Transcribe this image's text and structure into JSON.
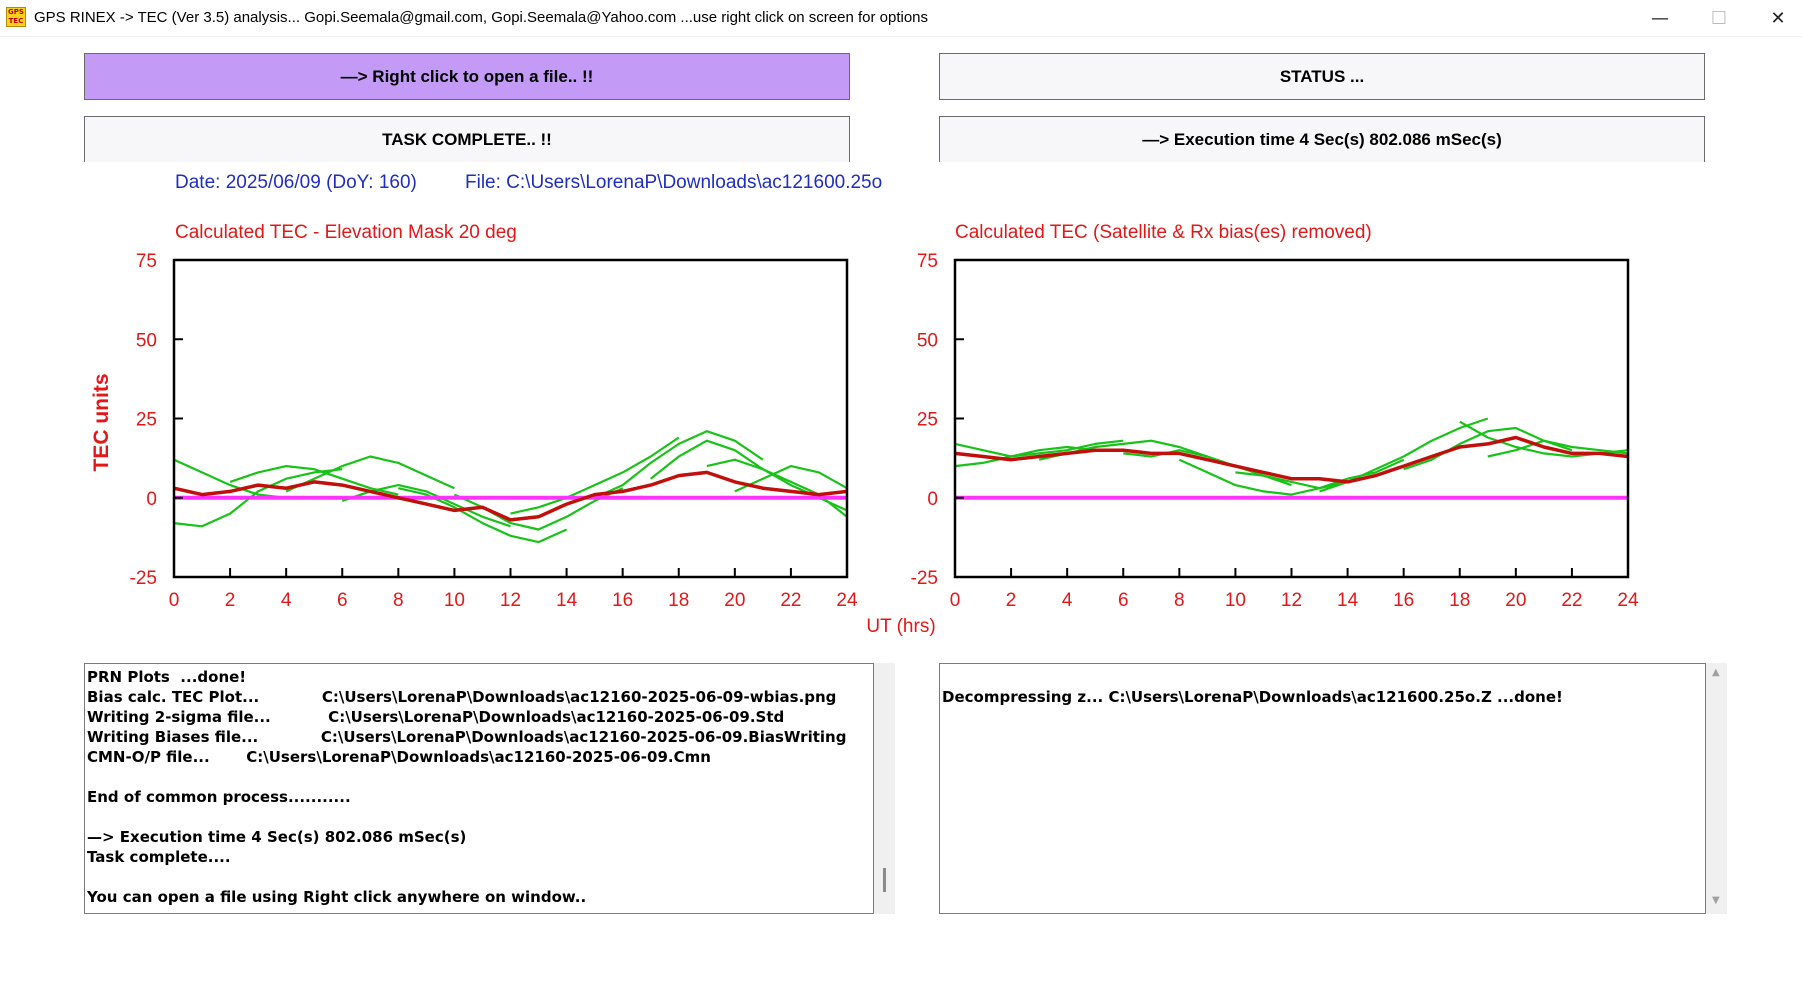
{
  "window": {
    "title": "GPS RINEX -> TEC (Ver 3.5) analysis...  Gopi.Seemala@gmail.com, Gopi.Seemala@Yahoo.com  ...use right click on screen for options",
    "icon_label": "GPS TEC",
    "minimize_glyph": "—",
    "maximize_glyph": "☐",
    "close_glyph": "✕"
  },
  "buttons": {
    "open_file": "—> Right click to open a file.. !!",
    "status": "STATUS ...",
    "task": "TASK COMPLETE.. !!",
    "exec_time": "—> Execution time 4 Sec(s) 802.086 mSec(s)"
  },
  "info": {
    "date": "Date: 2025/06/09 (DoY: 160)",
    "file": "File: C:\\Users\\LorenaP\\Downloads\\ac121600.25o"
  },
  "colors": {
    "accent_purple": "#c39bf7",
    "axis_label_red": "#e01818",
    "info_blue": "#1f2ec0",
    "satellite_green": "#19c219",
    "mean_dark_red": "#c0100c",
    "zero_line_magenta": "#ff33ff"
  },
  "chart_data": [
    {
      "type": "line",
      "title": "Calculated TEC - Elevation Mask 20 deg",
      "ylabel": "TEC units",
      "xlabel": "",
      "xlim": [
        0,
        24
      ],
      "ylim": [
        -25,
        75
      ],
      "x_ticks": [
        "0",
        "2",
        "4",
        "6",
        "8",
        "10",
        "12",
        "14",
        "16",
        "18",
        "20",
        "22",
        "24"
      ],
      "y_ticks": [
        "75",
        "50",
        "25",
        "0",
        "-25"
      ],
      "zero_line": 0,
      "series": [
        {
          "role": "mean",
          "x": [
            0,
            1,
            2,
            3,
            4,
            5,
            6,
            7,
            8,
            9,
            10,
            11,
            12,
            13,
            14,
            15,
            16,
            17,
            18,
            19,
            20,
            21,
            22,
            23,
            24
          ],
          "values": [
            3,
            1,
            2,
            4,
            3,
            5,
            4,
            2,
            0,
            -2,
            -4,
            -3,
            -7,
            -6,
            -2,
            1,
            2,
            4,
            7,
            8,
            5,
            3,
            2,
            1,
            2
          ]
        },
        {
          "role": "satellite",
          "x": [
            0,
            1,
            2,
            3,
            4,
            5,
            6
          ],
          "values": [
            -8,
            -9,
            -5,
            2,
            6,
            8,
            9
          ]
        },
        {
          "role": "satellite",
          "x": [
            0,
            1,
            2,
            3,
            4
          ],
          "values": [
            12,
            8,
            4,
            1,
            0
          ]
        },
        {
          "role": "satellite",
          "x": [
            2,
            3,
            4,
            5,
            6,
            7,
            8
          ],
          "values": [
            5,
            8,
            10,
            9,
            6,
            3,
            1
          ]
        },
        {
          "role": "satellite",
          "x": [
            4,
            5,
            6,
            7,
            8,
            9,
            10
          ],
          "values": [
            2,
            6,
            10,
            13,
            11,
            7,
            3
          ]
        },
        {
          "role": "satellite",
          "x": [
            6,
            7,
            8,
            9,
            10,
            11,
            12
          ],
          "values": [
            -1,
            2,
            4,
            2,
            -2,
            -6,
            -9
          ]
        },
        {
          "role": "satellite",
          "x": [
            8,
            9,
            10,
            11,
            12,
            13,
            14
          ],
          "values": [
            3,
            1,
            -3,
            -8,
            -12,
            -14,
            -10
          ]
        },
        {
          "role": "satellite",
          "x": [
            10,
            11,
            12,
            13,
            14,
            15,
            16
          ],
          "values": [
            1,
            -3,
            -8,
            -10,
            -6,
            -1,
            3
          ]
        },
        {
          "role": "satellite",
          "x": [
            12,
            13,
            14,
            15,
            16,
            17,
            18
          ],
          "values": [
            -5,
            -3,
            0,
            4,
            8,
            13,
            19
          ]
        },
        {
          "role": "satellite",
          "x": [
            15,
            16,
            17,
            18,
            19,
            20,
            21
          ],
          "values": [
            0,
            4,
            11,
            17,
            21,
            18,
            12
          ]
        },
        {
          "role": "satellite",
          "x": [
            17,
            18,
            19,
            20,
            21,
            22,
            23,
            24
          ],
          "values": [
            6,
            13,
            18,
            15,
            9,
            4,
            0,
            -4
          ]
        },
        {
          "role": "satellite",
          "x": [
            19,
            20,
            21,
            22,
            23,
            24
          ],
          "values": [
            10,
            12,
            9,
            5,
            1,
            -6
          ]
        },
        {
          "role": "satellite",
          "x": [
            20,
            21,
            22,
            23,
            24
          ],
          "values": [
            2,
            6,
            10,
            8,
            3
          ]
        }
      ]
    },
    {
      "type": "line",
      "title": "Calculated TEC (Satellite & Rx bias(es) removed)",
      "ylabel": "",
      "xlabel": "UT (hrs)",
      "xlim": [
        0,
        24
      ],
      "ylim": [
        -25,
        75
      ],
      "x_ticks": [
        "0",
        "2",
        "4",
        "6",
        "8",
        "10",
        "12",
        "14",
        "16",
        "18",
        "20",
        "22",
        "24"
      ],
      "y_ticks": [
        "75",
        "50",
        "25",
        "0",
        "-25"
      ],
      "zero_line": 0,
      "series": [
        {
          "role": "mean",
          "x": [
            0,
            1,
            2,
            3,
            4,
            5,
            6,
            7,
            8,
            9,
            10,
            11,
            12,
            13,
            14,
            15,
            16,
            17,
            18,
            19,
            20,
            21,
            22,
            23,
            24
          ],
          "values": [
            14,
            13,
            12,
            13,
            14,
            15,
            15,
            14,
            14,
            12,
            10,
            8,
            6,
            6,
            5,
            7,
            10,
            13,
            16,
            17,
            19,
            16,
            14,
            14,
            13
          ]
        },
        {
          "role": "satellite",
          "x": [
            0,
            1,
            2,
            3,
            4,
            5,
            6
          ],
          "values": [
            17,
            15,
            13,
            14,
            15,
            17,
            18
          ]
        },
        {
          "role": "satellite",
          "x": [
            0,
            1,
            2,
            3,
            4,
            5
          ],
          "values": [
            10,
            11,
            13,
            15,
            16,
            15
          ]
        },
        {
          "role": "satellite",
          "x": [
            3,
            4,
            5,
            6,
            7,
            8,
            9
          ],
          "values": [
            12,
            14,
            16,
            17,
            18,
            16,
            13
          ]
        },
        {
          "role": "satellite",
          "x": [
            6,
            7,
            8,
            9,
            10,
            11,
            12
          ],
          "values": [
            14,
            13,
            15,
            13,
            10,
            7,
            4
          ]
        },
        {
          "role": "satellite",
          "x": [
            8,
            9,
            10,
            11,
            12,
            13,
            14
          ],
          "values": [
            12,
            8,
            4,
            2,
            1,
            3,
            5
          ]
        },
        {
          "role": "satellite",
          "x": [
            10,
            11,
            12,
            13,
            14,
            15,
            16
          ],
          "values": [
            8,
            7,
            5,
            3,
            6,
            8,
            12
          ]
        },
        {
          "role": "satellite",
          "x": [
            13,
            14,
            15,
            16,
            17,
            18,
            19
          ],
          "values": [
            2,
            5,
            9,
            13,
            18,
            22,
            25
          ]
        },
        {
          "role": "satellite",
          "x": [
            16,
            17,
            18,
            19,
            20,
            21,
            22
          ],
          "values": [
            9,
            12,
            17,
            21,
            22,
            18,
            15
          ]
        },
        {
          "role": "satellite",
          "x": [
            18,
            19,
            20,
            21,
            22,
            23,
            24
          ],
          "values": [
            24,
            19,
            16,
            14,
            13,
            14,
            15
          ]
        },
        {
          "role": "satellite",
          "x": [
            19,
            20,
            21,
            22,
            23,
            24
          ],
          "values": [
            13,
            15,
            18,
            16,
            15,
            14
          ]
        }
      ]
    }
  ],
  "log_left": {
    "lines": [
      "PRN Plots  ...done!",
      "Bias calc. TEC Plot...            C:\\Users\\LorenaP\\Downloads\\ac12160-2025-06-09-wbias.png",
      "Writing 2-sigma file...           C:\\Users\\LorenaP\\Downloads\\ac12160-2025-06-09.Std",
      "Writing Biases file...            C:\\Users\\LorenaP\\Downloads\\ac12160-2025-06-09.BiasWriting",
      "CMN-O/P file...       C:\\Users\\LorenaP\\Downloads\\ac12160-2025-06-09.Cmn",
      "",
      "End of common process...........",
      "",
      "—> Execution time 4 Sec(s) 802.086 mSec(s)",
      "Task complete....",
      "",
      "You can open a file using Right click anywhere on window.."
    ]
  },
  "log_right": {
    "lines": [
      "",
      "Decompressing z... C:\\Users\\LorenaP\\Downloads\\ac121600.25o.Z ...done!"
    ]
  }
}
